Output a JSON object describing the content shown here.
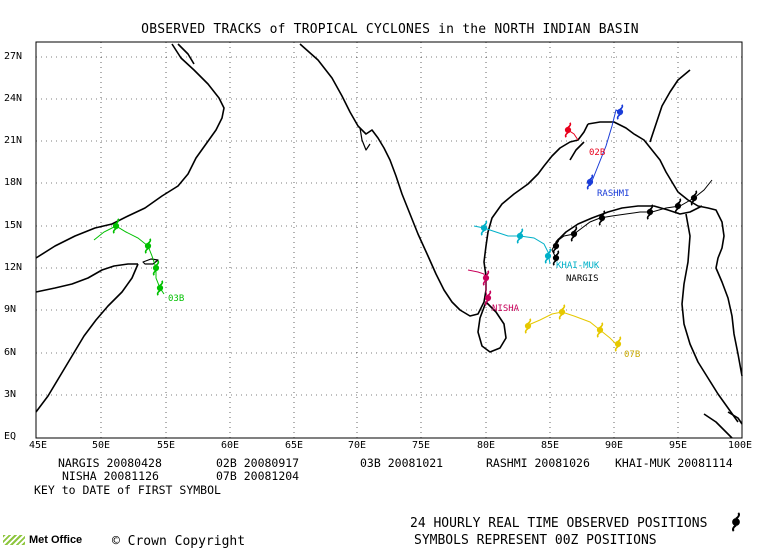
{
  "title": "OBSERVED TRACKS of TROPICAL CYCLONES in the NORTH INDIAN BASIN",
  "axes": {
    "y_ticks": [
      "27N",
      "24N",
      "21N",
      "18N",
      "15N",
      "12N",
      "9N",
      "6N",
      "3N",
      "EQ"
    ],
    "x_ticks": [
      "45E",
      "50E",
      "55E",
      "60E",
      "65E",
      "70E",
      "75E",
      "80E",
      "85E",
      "90E",
      "95E",
      "100E"
    ]
  },
  "storms": [
    {
      "name": "NARGIS",
      "label": "NARGIS",
      "color": "#000000",
      "first_date": "20080428"
    },
    {
      "name": "02B",
      "label": "02B",
      "color": "#e8001c",
      "first_date": "20080917"
    },
    {
      "name": "03B",
      "label": "03B",
      "color": "#00c000",
      "first_date": "20081021"
    },
    {
      "name": "RASHMI",
      "label": "RASHMI",
      "color": "#1a3cd8",
      "first_date": "20081026"
    },
    {
      "name": "KHAI-MUK",
      "label": "KHAI-MUK",
      "color": "#00b0c8",
      "first_date": "20081114"
    },
    {
      "name": "NISHA",
      "label": "NISHA",
      "color": "#c8005a",
      "first_date": "20081126"
    },
    {
      "name": "07B",
      "label": "07B",
      "color": "#e6c800",
      "first_date": "20081204"
    }
  ],
  "key_text": "KEY to DATE of FIRST SYMBOL",
  "footer": {
    "line1": "24 HOURLY REAL TIME OBSERVED POSITIONS",
    "line2": "SYMBOLS REPRESENT 00Z POSITIONS",
    "organisation": "Met Office",
    "copyright": "Crown Copyright"
  },
  "symbol_icon": "cyclone-symbol-icon"
}
